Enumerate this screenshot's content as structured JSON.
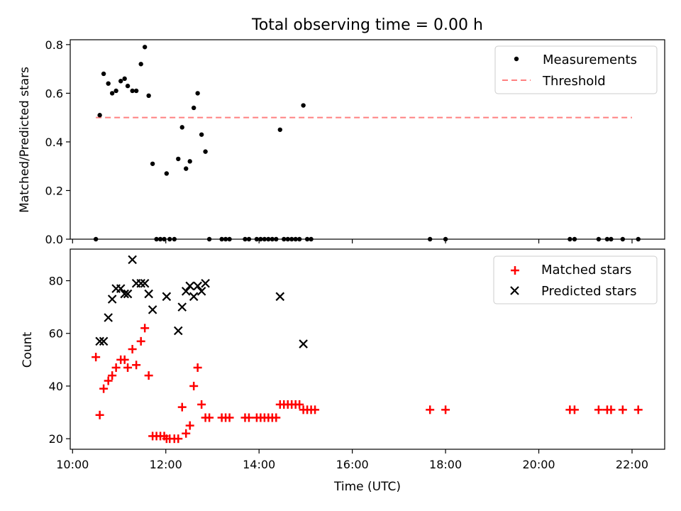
{
  "chart_data": [
    {
      "type": "scatter",
      "title": "Total observing time = 0.00 h",
      "xlabel": "",
      "ylabel": "Matched/Predicted stars",
      "xlim": [
        "09:57",
        "22:42"
      ],
      "ylim": [
        0,
        0.82
      ],
      "yticks": [
        "0.0",
        "0.2",
        "0.4",
        "0.6",
        "0.8"
      ],
      "legend": {
        "position": "top-right",
        "entries": [
          "Measurements",
          "Threshold"
        ]
      },
      "threshold": {
        "name": "Threshold",
        "value": 0.5,
        "x_range": [
          "10:30",
          "22:00"
        ],
        "color": "#ff8080"
      },
      "series": [
        {
          "name": "Measurements",
          "color": "#000000",
          "points": [
            [
              "10:30",
              0.0
            ],
            [
              "10:35",
              0.51
            ],
            [
              "10:40",
              0.68
            ],
            [
              "10:46",
              0.64
            ],
            [
              "10:51",
              0.6
            ],
            [
              "10:56",
              0.61
            ],
            [
              "11:02",
              0.65
            ],
            [
              "11:07",
              0.66
            ],
            [
              "11:11",
              0.63
            ],
            [
              "11:17",
              0.61
            ],
            [
              "11:22",
              0.61
            ],
            [
              "11:28",
              0.72
            ],
            [
              "11:33",
              0.79
            ],
            [
              "11:38",
              0.59
            ],
            [
              "11:43",
              0.31
            ],
            [
              "11:48",
              0.0
            ],
            [
              "11:53",
              0.0
            ],
            [
              "11:58",
              0.0
            ],
            [
              "12:01",
              0.27
            ],
            [
              "12:05",
              0.0
            ],
            [
              "12:11",
              0.0
            ],
            [
              "12:16",
              0.33
            ],
            [
              "12:21",
              0.46
            ],
            [
              "12:26",
              0.29
            ],
            [
              "12:31",
              0.32
            ],
            [
              "12:36",
              0.54
            ],
            [
              "12:41",
              0.6
            ],
            [
              "12:46",
              0.43
            ],
            [
              "12:51",
              0.36
            ],
            [
              "12:56",
              0.0
            ],
            [
              "13:12",
              0.0
            ],
            [
              "13:17",
              0.0
            ],
            [
              "13:22",
              0.0
            ],
            [
              "13:42",
              0.0
            ],
            [
              "13:47",
              0.0
            ],
            [
              "13:57",
              0.0
            ],
            [
              "14:02",
              0.0
            ],
            [
              "14:07",
              0.0
            ],
            [
              "14:12",
              0.0
            ],
            [
              "14:17",
              0.0
            ],
            [
              "14:22",
              0.0
            ],
            [
              "14:27",
              0.45
            ],
            [
              "14:32",
              0.0
            ],
            [
              "14:37",
              0.0
            ],
            [
              "14:42",
              0.0
            ],
            [
              "14:47",
              0.0
            ],
            [
              "14:52",
              0.0
            ],
            [
              "14:57",
              0.55
            ],
            [
              "15:02",
              0.0
            ],
            [
              "15:07",
              0.0
            ],
            [
              "17:40",
              0.0
            ],
            [
              "18:00",
              0.0
            ],
            [
              "20:40",
              0.0
            ],
            [
              "20:46",
              0.0
            ],
            [
              "21:17",
              0.0
            ],
            [
              "21:28",
              0.0
            ],
            [
              "21:33",
              0.0
            ],
            [
              "21:48",
              0.0
            ],
            [
              "22:08",
              0.0
            ]
          ]
        }
      ]
    },
    {
      "type": "scatter",
      "title": "",
      "xlabel": "Time (UTC)",
      "ylabel": "Count",
      "xlim": [
        "09:57",
        "22:42"
      ],
      "ylim": [
        16,
        92
      ],
      "xticks": [
        "10:00",
        "12:00",
        "14:00",
        "16:00",
        "18:00",
        "20:00",
        "22:00"
      ],
      "yticks": [
        "20",
        "40",
        "60",
        "80"
      ],
      "legend": {
        "position": "top-right",
        "entries": [
          "Matched stars",
          "Predicted stars"
        ]
      },
      "series": [
        {
          "name": "Matched stars",
          "color": "#ff0000",
          "marker": "+",
          "points": [
            [
              "10:30",
              51
            ],
            [
              "10:35",
              29
            ],
            [
              "10:40",
              39
            ],
            [
              "10:46",
              42
            ],
            [
              "10:51",
              44
            ],
            [
              "10:56",
              47
            ],
            [
              "11:02",
              50
            ],
            [
              "11:07",
              50
            ],
            [
              "11:11",
              47
            ],
            [
              "11:17",
              54
            ],
            [
              "11:22",
              48
            ],
            [
              "11:28",
              57
            ],
            [
              "11:33",
              62
            ],
            [
              "11:38",
              44
            ],
            [
              "11:43",
              21
            ],
            [
              "11:48",
              21
            ],
            [
              "11:53",
              21
            ],
            [
              "11:58",
              21
            ],
            [
              "12:01",
              20
            ],
            [
              "12:05",
              20
            ],
            [
              "12:11",
              20
            ],
            [
              "12:16",
              20
            ],
            [
              "12:21",
              32
            ],
            [
              "12:26",
              22
            ],
            [
              "12:31",
              25
            ],
            [
              "12:36",
              40
            ],
            [
              "12:41",
              47
            ],
            [
              "12:46",
              33
            ],
            [
              "12:51",
              28
            ],
            [
              "12:56",
              28
            ],
            [
              "13:12",
              28
            ],
            [
              "13:17",
              28
            ],
            [
              "13:22",
              28
            ],
            [
              "13:42",
              28
            ],
            [
              "13:47",
              28
            ],
            [
              "13:57",
              28
            ],
            [
              "14:02",
              28
            ],
            [
              "14:07",
              28
            ],
            [
              "14:12",
              28
            ],
            [
              "14:17",
              28
            ],
            [
              "14:22",
              28
            ],
            [
              "14:27",
              33
            ],
            [
              "14:32",
              33
            ],
            [
              "14:37",
              33
            ],
            [
              "14:42",
              33
            ],
            [
              "14:47",
              33
            ],
            [
              "14:52",
              33
            ],
            [
              "14:57",
              31
            ],
            [
              "15:02",
              31
            ],
            [
              "15:07",
              31
            ],
            [
              "15:12",
              31
            ],
            [
              "17:40",
              31
            ],
            [
              "18:00",
              31
            ],
            [
              "20:40",
              31
            ],
            [
              "20:46",
              31
            ],
            [
              "21:17",
              31
            ],
            [
              "21:28",
              31
            ],
            [
              "21:33",
              31
            ],
            [
              "21:48",
              31
            ],
            [
              "22:08",
              31
            ]
          ]
        },
        {
          "name": "Predicted stars",
          "color": "#000000",
          "marker": "x",
          "points": [
            [
              "10:35",
              57
            ],
            [
              "10:40",
              57
            ],
            [
              "10:46",
              66
            ],
            [
              "10:51",
              73
            ],
            [
              "10:56",
              77
            ],
            [
              "11:02",
              77
            ],
            [
              "11:07",
              75
            ],
            [
              "11:11",
              75
            ],
            [
              "11:17",
              88
            ],
            [
              "11:22",
              79
            ],
            [
              "11:28",
              79
            ],
            [
              "11:33",
              79
            ],
            [
              "11:38",
              75
            ],
            [
              "11:43",
              69
            ],
            [
              "12:01",
              74
            ],
            [
              "12:16",
              61
            ],
            [
              "12:21",
              70
            ],
            [
              "12:26",
              76
            ],
            [
              "12:31",
              78
            ],
            [
              "12:36",
              74
            ],
            [
              "12:41",
              78
            ],
            [
              "12:46",
              76
            ],
            [
              "12:51",
              79
            ],
            [
              "14:27",
              74
            ],
            [
              "14:57",
              56
            ]
          ]
        }
      ]
    }
  ]
}
